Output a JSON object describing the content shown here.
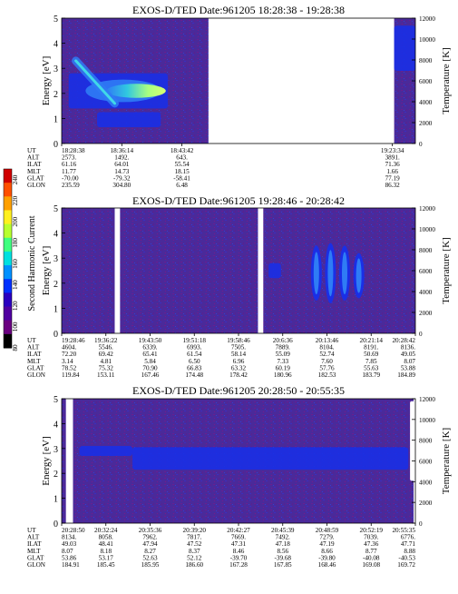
{
  "colors": {
    "background_floor": "#4a2a9a",
    "enhanced": "#1a2fe6",
    "peak_low": "#2f7cf5",
    "peak_high": "#d8ff70",
    "gap": "#ffffff"
  },
  "colorbar": {
    "label": "Second Harmonic Current",
    "ticks": [
      "240",
      "220",
      "200",
      "180",
      "160",
      "140",
      "120",
      "100",
      "80"
    ],
    "colors": [
      "#d00000",
      "#ff5000",
      "#ffa000",
      "#fff020",
      "#b8ff30",
      "#40ff80",
      "#00e0e0",
      "#0090ff",
      "#0030ff",
      "#2a00c0",
      "#5000a0",
      "#6a0080",
      "#000000"
    ]
  },
  "chart_data": [
    {
      "type": "heatmap",
      "title": "EXOS-D/TED   Date:961205  18:28:38 - 19:28:38",
      "ylabel": "Energy [eV]",
      "ylim": [
        0,
        5
      ],
      "y_ticks": [
        "0",
        "1",
        "2",
        "3",
        "4",
        "5"
      ],
      "y2label": "Temperature [K]",
      "y2lim": [
        0,
        12000
      ],
      "y2_ticks": [
        "0",
        "2000",
        "4000",
        "6000",
        "8000",
        "10000",
        "12000"
      ],
      "data_spans": [
        [
          0,
          0.415
        ],
        [
          0.94,
          1.0
        ]
      ],
      "features": [
        {
          "kind": "band",
          "from_frac": 0.02,
          "to_frac": 0.3,
          "e_center": 2.1,
          "e_halfwidth": 0.7,
          "hot": true
        },
        {
          "kind": "diagonal",
          "from_frac": 0.04,
          "to_frac": 0.15,
          "e_start": 3.3,
          "e_end": 1.6
        },
        {
          "kind": "band",
          "from_frac": 0.1,
          "to_frac": 0.28,
          "e_center": 0.95,
          "e_halfwidth": 0.3,
          "hot": false
        },
        {
          "kind": "band",
          "from_frac": 0.94,
          "to_frac": 1.0,
          "e_center": 3.8,
          "e_halfwidth": 0.9,
          "hot": false
        }
      ],
      "table": {
        "labels": [
          "UT",
          "ALT",
          "ILAT",
          "MLT",
          "GLAT",
          "GLON"
        ],
        "columns": [
          {
            "pos": 0.0,
            "values": [
              "18:28:38",
              "2573.",
              "61.16",
              "11.77",
              "-70.00",
              "235.59"
            ]
          },
          {
            "pos": 0.17,
            "values": [
              "18:36:14",
              "1492.",
              "64.01",
              "14.73",
              "-79.32",
              "304.80"
            ]
          },
          {
            "pos": 0.34,
            "values": [
              "18:43:42",
              "643.",
              "55.54",
              "18.15",
              "-58.41",
              "6.48"
            ]
          },
          {
            "pos": 0.935,
            "values": [
              "19:23:34",
              "3891.",
              "71.36",
              "1.66",
              "77.19",
              "86.32"
            ]
          }
        ]
      }
    },
    {
      "type": "heatmap",
      "title": "EXOS-D/TED   Date:961205  19:28:46 - 20:28:42",
      "ylabel": "Energy [eV]",
      "ylim": [
        0,
        5
      ],
      "y_ticks": [
        "0",
        "1",
        "2",
        "3",
        "4",
        "5"
      ],
      "y2label": "Temperature [K]",
      "y2lim": [
        0,
        12000
      ],
      "y2_ticks": [
        "0",
        "2000",
        "4000",
        "6000",
        "8000",
        "10000",
        "12000"
      ],
      "data_spans": [
        [
          0,
          0.15
        ],
        [
          0.165,
          0.555
        ],
        [
          0.57,
          1.0
        ]
      ],
      "features": [
        {
          "kind": "band",
          "from_frac": 0.585,
          "to_frac": 0.62,
          "e_center": 2.5,
          "e_halfwidth": 0.3,
          "hot": false
        },
        {
          "kind": "spike",
          "at_frac": 0.72,
          "e_center": 2.4,
          "e_halfwidth": 1.1
        },
        {
          "kind": "spike",
          "at_frac": 0.76,
          "e_center": 2.4,
          "e_halfwidth": 1.2
        },
        {
          "kind": "spike",
          "at_frac": 0.8,
          "e_center": 2.4,
          "e_halfwidth": 1.1
        },
        {
          "kind": "spike",
          "at_frac": 0.84,
          "e_center": 2.3,
          "e_halfwidth": 0.9
        }
      ],
      "table": {
        "labels": [
          "UT",
          "ALT",
          "ILAT",
          "MLT",
          "GLAT",
          "GLON"
        ],
        "columns": [
          {
            "pos": 0.0,
            "values": [
              "19:28:46",
              "4604.",
              "72.20",
              "3.14",
              "78.52",
              "119.84"
            ]
          },
          {
            "pos": 0.125,
            "values": [
              "19:36:22",
              "5546.",
              "69.42",
              "4.81",
              "75.32",
              "153.11"
            ]
          },
          {
            "pos": 0.25,
            "values": [
              "19:43:50",
              "6339.",
              "65.41",
              "5.84",
              "70.90",
              "167.46"
            ]
          },
          {
            "pos": 0.375,
            "values": [
              "19:51:18",
              "6993.",
              "61.54",
              "6.50",
              "66.83",
              "174.48"
            ]
          },
          {
            "pos": 0.5,
            "values": [
              "19:58:46",
              "7505.",
              "58.14",
              "6.96",
              "63.32",
              "178.42"
            ]
          },
          {
            "pos": 0.625,
            "values": [
              "20:6:36",
              "7889.",
              "55.09",
              "7.33",
              "60.19",
              "180.96"
            ]
          },
          {
            "pos": 0.75,
            "values": [
              "20:13:46",
              "8104.",
              "52.74",
              "7.60",
              "57.76",
              "182.53"
            ]
          },
          {
            "pos": 0.875,
            "values": [
              "20:21:14",
              "8191.",
              "50.69",
              "7.85",
              "55.63",
              "183.79"
            ]
          },
          {
            "pos": 1.0,
            "values": [
              "20:28:42",
              "8136.",
              "49.05",
              "8.07",
              "53.88",
              "184.89"
            ]
          }
        ]
      }
    },
    {
      "type": "heatmap",
      "title": "EXOS-D/TED   Date:961205  20:28:50 - 20:55:35",
      "ylabel": "Energy [eV]",
      "ylim": [
        0,
        5
      ],
      "y_ticks": [
        "0",
        "1",
        "2",
        "3",
        "4",
        "5"
      ],
      "y2label": "Temperature [K]",
      "y2lim": [
        0,
        12000
      ],
      "y2_ticks": [
        "0",
        "2000",
        "4000",
        "6000",
        "8000",
        "10000",
        "12000"
      ],
      "data_spans": [
        [
          0,
          0.012
        ],
        [
          0.032,
          0.995
        ]
      ],
      "features": [
        {
          "kind": "band",
          "from_frac": 0.2,
          "to_frac": 0.98,
          "e_center": 2.6,
          "e_halfwidth": 0.45,
          "hot": false
        },
        {
          "kind": "band",
          "from_frac": 0.05,
          "to_frac": 0.2,
          "e_center": 2.9,
          "e_halfwidth": 0.2,
          "hot": false
        }
      ],
      "white_marker": {
        "frac": 0.99,
        "e_from": 1.7,
        "e_to": 4.9
      },
      "table": {
        "labels": [
          "UT",
          "ALT",
          "ILAT",
          "MLT",
          "GLAT",
          "GLON"
        ],
        "columns": [
          {
            "pos": 0.0,
            "values": [
              "20:28:50",
              "8134.",
              "49.03",
              "8.07",
              "53.86",
              "184.91"
            ]
          },
          {
            "pos": 0.125,
            "values": [
              "20:32:24",
              "8058.",
              "48.41",
              "8.18",
              "53.17",
              "185.45"
            ]
          },
          {
            "pos": 0.25,
            "values": [
              "20:35:36",
              "7962.",
              "47.94",
              "8.27",
              "52.63",
              "185.95"
            ]
          },
          {
            "pos": 0.375,
            "values": [
              "20:39:20",
              "7817.",
              "47.52",
              "8.37",
              "52.12",
              "186.60"
            ]
          },
          {
            "pos": 0.5,
            "values": [
              "20:42:27",
              "7669.",
              "47.31",
              "8.46",
              "-39.70",
              "167.28"
            ]
          },
          {
            "pos": 0.625,
            "values": [
              "20:45:39",
              "7492.",
              "47.18",
              "8.56",
              "-39.68",
              "167.85"
            ]
          },
          {
            "pos": 0.75,
            "values": [
              "20:48:59",
              "7279.",
              "47.19",
              "8.66",
              "-39.80",
              "168.46"
            ]
          },
          {
            "pos": 0.875,
            "values": [
              "20:52:19",
              "7039.",
              "47.36",
              "8.77",
              "-40.08",
              "169.08"
            ]
          },
          {
            "pos": 1.0,
            "values": [
              "20:55:35",
              "6776.",
              "47.71",
              "8.88",
              "-40.53",
              "169.72"
            ]
          }
        ]
      }
    }
  ]
}
